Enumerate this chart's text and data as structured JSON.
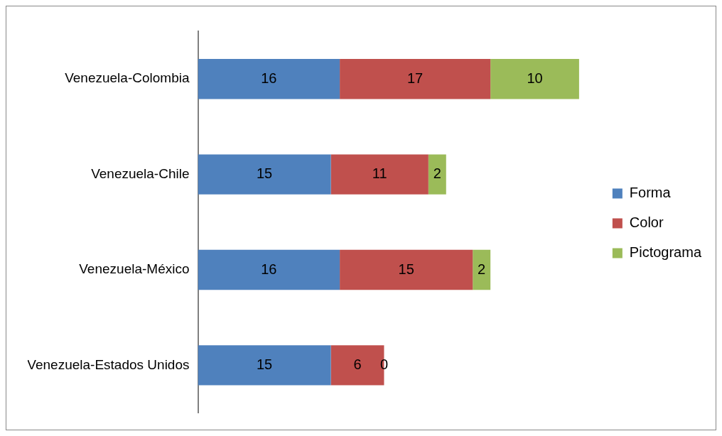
{
  "chart_data": {
    "type": "bar",
    "orientation": "horizontal",
    "stacked": true,
    "categories": [
      "Venezuela-Colombia",
      "Venezuela-Chile",
      "Venezuela-México",
      "Venezuela-Estados Unidos"
    ],
    "series": [
      {
        "name": "Forma",
        "color": "#4f81bd",
        "values": [
          16,
          15,
          16,
          15
        ]
      },
      {
        "name": "Color",
        "color": "#c0504d",
        "values": [
          17,
          11,
          15,
          6
        ]
      },
      {
        "name": "Pictograma",
        "color": "#9bbb59",
        "values": [
          10,
          2,
          2,
          0
        ]
      }
    ],
    "data_labels": true,
    "legend": "right"
  }
}
